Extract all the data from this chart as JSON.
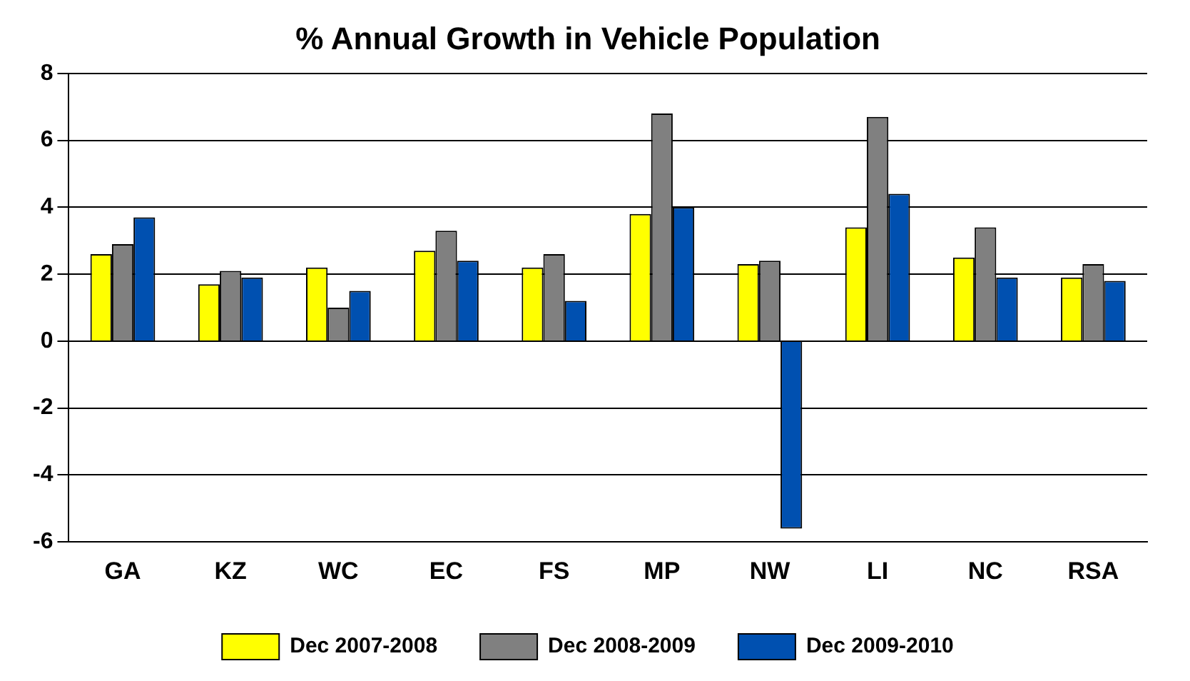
{
  "chart_data": {
    "type": "bar",
    "title": "% Annual Growth in Vehicle Population",
    "categories": [
      "GA",
      "KZ",
      "WC",
      "EC",
      "FS",
      "MP",
      "NW",
      "LI",
      "NC",
      "RSA"
    ],
    "series": [
      {
        "name": "Dec 2007-2008",
        "color": "#ffff00",
        "values": [
          2.6,
          1.7,
          2.2,
          2.7,
          2.2,
          3.8,
          2.3,
          3.4,
          2.5,
          1.9
        ]
      },
      {
        "name": "Dec 2008-2009",
        "color": "#808080",
        "values": [
          2.9,
          2.1,
          1.0,
          3.3,
          2.6,
          6.8,
          2.4,
          6.7,
          3.4,
          2.3
        ]
      },
      {
        "name": "Dec 2009-2010",
        "color": "#0050b0",
        "values": [
          3.7,
          1.9,
          1.5,
          2.4,
          1.2,
          4.0,
          -5.6,
          4.4,
          1.9,
          1.8
        ]
      }
    ],
    "ylim": [
      -6,
      8
    ],
    "yticks": [
      -6,
      -4,
      -2,
      0,
      2,
      4,
      6,
      8
    ],
    "grid": "y",
    "legend": "bottom"
  }
}
